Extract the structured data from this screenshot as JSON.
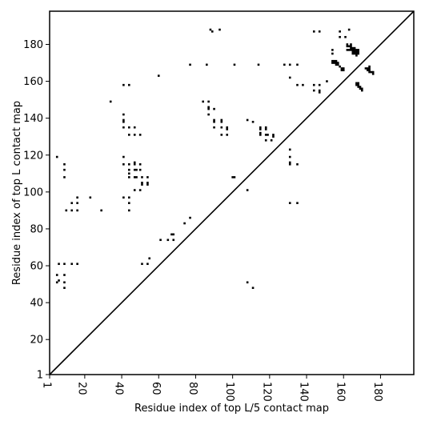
{
  "chart_data": {
    "type": "scatter",
    "title": "",
    "xlabel": "Residue index of top L/5 contact map",
    "ylabel": "Residue index of top L contact map",
    "xlim": [
      1,
      198
    ],
    "ylim": [
      1,
      198
    ],
    "xticks": [
      1,
      20,
      40,
      60,
      80,
      100,
      120,
      140,
      160,
      180
    ],
    "yticks": [
      1,
      20,
      40,
      60,
      80,
      100,
      120,
      140,
      160,
      180
    ],
    "diagonal": true,
    "grid": false,
    "legend": "none",
    "colors": {
      "points": "#000000",
      "diagonal": "#000000",
      "frame": "#000000"
    },
    "series": [
      {
        "points": [
          [
            5,
            55
          ],
          [
            5,
            51
          ],
          [
            6,
            61
          ],
          [
            6,
            52
          ],
          [
            9,
            61
          ],
          [
            9,
            55
          ],
          [
            9,
            51
          ],
          [
            9,
            48
          ],
          [
            13,
            61
          ],
          [
            16,
            61
          ],
          [
            10,
            90
          ],
          [
            13,
            90
          ],
          [
            13,
            94
          ],
          [
            16,
            90
          ],
          [
            16,
            94
          ],
          [
            16,
            97
          ],
          [
            23,
            97
          ],
          [
            29,
            90
          ],
          [
            5,
            119
          ],
          [
            9,
            115
          ],
          [
            9,
            112
          ],
          [
            9,
            108
          ],
          [
            34,
            149
          ],
          [
            41,
            158
          ],
          [
            44,
            158
          ],
          [
            41,
            142
          ],
          [
            41,
            139
          ],
          [
            41,
            138
          ],
          [
            41,
            135
          ],
          [
            44,
            135
          ],
          [
            47,
            135
          ],
          [
            44,
            131
          ],
          [
            47,
            131
          ],
          [
            50,
            131
          ],
          [
            41,
            119
          ],
          [
            41,
            115
          ],
          [
            44,
            115
          ],
          [
            44,
            112
          ],
          [
            44,
            110
          ],
          [
            44,
            108
          ],
          [
            47,
            116
          ],
          [
            47,
            115
          ],
          [
            47,
            112
          ],
          [
            47,
            108
          ],
          [
            48,
            112
          ],
          [
            48,
            108
          ],
          [
            50,
            115
          ],
          [
            50,
            112
          ],
          [
            51,
            108
          ],
          [
            51,
            105
          ],
          [
            51,
            104
          ],
          [
            54,
            108
          ],
          [
            54,
            105
          ],
          [
            54,
            104
          ],
          [
            47,
            101
          ],
          [
            50,
            101
          ],
          [
            41,
            97
          ],
          [
            44,
            97
          ],
          [
            44,
            94
          ],
          [
            44,
            90
          ],
          [
            51,
            61
          ],
          [
            54,
            61
          ],
          [
            55,
            64
          ],
          [
            60,
            163
          ],
          [
            61,
            74
          ],
          [
            65,
            74
          ],
          [
            67,
            77
          ],
          [
            68,
            77
          ],
          [
            68,
            74
          ],
          [
            74,
            83
          ],
          [
            77,
            86
          ],
          [
            77,
            169
          ],
          [
            84,
            149
          ],
          [
            87,
            149
          ],
          [
            87,
            146
          ],
          [
            87,
            145
          ],
          [
            87,
            142
          ],
          [
            86,
            169
          ],
          [
            88,
            188
          ],
          [
            89,
            187
          ],
          [
            90,
            145
          ],
          [
            90,
            139
          ],
          [
            90,
            138
          ],
          [
            90,
            135
          ],
          [
            93,
            188
          ],
          [
            94,
            139
          ],
          [
            94,
            138
          ],
          [
            94,
            135
          ],
          [
            94,
            131
          ],
          [
            97,
            135
          ],
          [
            97,
            134
          ],
          [
            97,
            131
          ],
          [
            100,
            108
          ],
          [
            101,
            108
          ],
          [
            101,
            169
          ],
          [
            108,
            139
          ],
          [
            108,
            101
          ],
          [
            108,
            51
          ],
          [
            111,
            138
          ],
          [
            111,
            48
          ],
          [
            114,
            169
          ],
          [
            115,
            135
          ],
          [
            115,
            134
          ],
          [
            115,
            132
          ],
          [
            115,
            131
          ],
          [
            118,
            135
          ],
          [
            118,
            134
          ],
          [
            118,
            131
          ],
          [
            118,
            128
          ],
          [
            119,
            131
          ],
          [
            121,
            128
          ],
          [
            122,
            131
          ],
          [
            122,
            130
          ],
          [
            128,
            169
          ],
          [
            131,
            169
          ],
          [
            131,
            162
          ],
          [
            131,
            123
          ],
          [
            131,
            119
          ],
          [
            131,
            116
          ],
          [
            131,
            115
          ],
          [
            135,
            169
          ],
          [
            135,
            158
          ],
          [
            135,
            115
          ],
          [
            138,
            158
          ],
          [
            131,
            94
          ],
          [
            135,
            94
          ],
          [
            144,
            187
          ],
          [
            147,
            187
          ],
          [
            144,
            158
          ],
          [
            144,
            155
          ],
          [
            147,
            158
          ],
          [
            147,
            155
          ],
          [
            147,
            154
          ],
          [
            151,
            160
          ],
          [
            154,
            177
          ],
          [
            154,
            175
          ],
          [
            154,
            171
          ],
          [
            154,
            170
          ],
          [
            155,
            171
          ],
          [
            155,
            170
          ],
          [
            156,
            171
          ],
          [
            156,
            170
          ],
          [
            156,
            169
          ],
          [
            157,
            170
          ],
          [
            157,
            169
          ],
          [
            158,
            187
          ],
          [
            158,
            184
          ],
          [
            158,
            168
          ],
          [
            159,
            167
          ],
          [
            159,
            166
          ],
          [
            160,
            167
          ],
          [
            160,
            166
          ],
          [
            161,
            184
          ],
          [
            162,
            180
          ],
          [
            162,
            179
          ],
          [
            162,
            177
          ],
          [
            163,
            188
          ],
          [
            163,
            179
          ],
          [
            163,
            177
          ],
          [
            164,
            180
          ],
          [
            164,
            179
          ],
          [
            164,
            178
          ],
          [
            164,
            177
          ],
          [
            165,
            178
          ],
          [
            165,
            177
          ],
          [
            165,
            176
          ],
          [
            165,
            175
          ],
          [
            166,
            178
          ],
          [
            166,
            177
          ],
          [
            166,
            176
          ],
          [
            166,
            175
          ],
          [
            167,
            177
          ],
          [
            167,
            176
          ],
          [
            167,
            175
          ],
          [
            167,
            174
          ],
          [
            167,
            159
          ],
          [
            167,
            158
          ],
          [
            168,
            177
          ],
          [
            168,
            176
          ],
          [
            168,
            175
          ],
          [
            168,
            159
          ],
          [
            168,
            158
          ],
          [
            168,
            157
          ],
          [
            169,
            157
          ],
          [
            169,
            156
          ],
          [
            170,
            156
          ],
          [
            170,
            155
          ],
          [
            172,
            167
          ],
          [
            173,
            167
          ],
          [
            173,
            166
          ],
          [
            174,
            168
          ],
          [
            174,
            167
          ],
          [
            174,
            166
          ],
          [
            174,
            165
          ],
          [
            175,
            165
          ],
          [
            176,
            165
          ],
          [
            176,
            164
          ]
        ]
      }
    ]
  }
}
